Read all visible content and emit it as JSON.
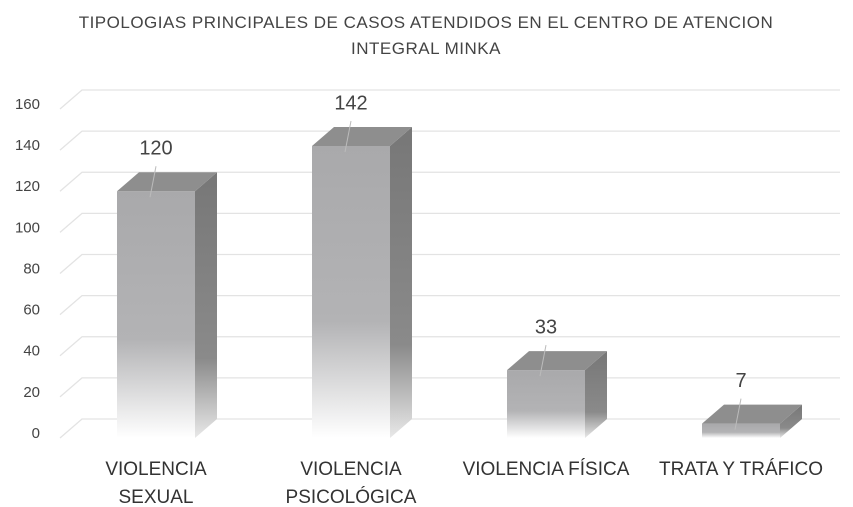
{
  "chart_data": {
    "type": "bar3d",
    "title": "TIPOLOGIAS PRINCIPALES DE CASOS ATENDIDOS EN EL CENTRO DE ATENCION INTEGRAL MINKA",
    "categories": [
      "VIOLENCIA SEXUAL",
      "VIOLENCIA PSICOLÓGICA",
      "VIOLENCIA FÍSICA",
      "TRATA Y TRÁFICO"
    ],
    "values": [
      120,
      142,
      33,
      7
    ],
    "color": "#a9a9ab",
    "ylim": [
      0,
      160
    ],
    "yticks": [
      0,
      20,
      40,
      60,
      80,
      100,
      120,
      140,
      160
    ],
    "grid": true
  }
}
